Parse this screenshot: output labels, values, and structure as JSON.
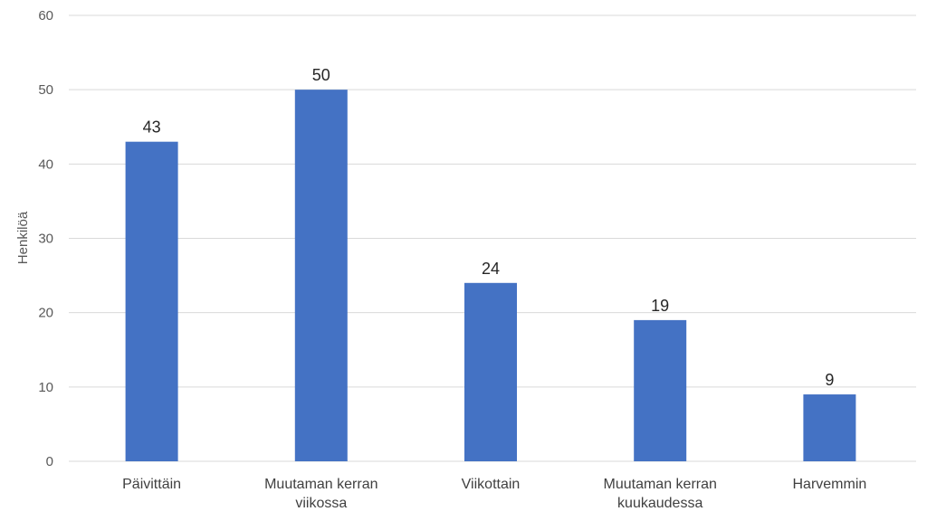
{
  "chart_data": {
    "type": "bar",
    "categories": [
      "Päivittäin",
      "Muutaman kerran viikossa",
      "Viikottain",
      "Muutaman kerran kuukaudessa",
      "Harvemmin"
    ],
    "category_label_lines": [
      [
        "Päivittäin"
      ],
      [
        "Muutaman kerran",
        "viikossa"
      ],
      [
        "Viikottain"
      ],
      [
        "Muutaman kerran",
        "kuukaudessa"
      ],
      [
        "Harvemmin"
      ]
    ],
    "values": [
      43,
      50,
      24,
      19,
      9
    ],
    "data_labels": [
      "43",
      "50",
      "24",
      "19",
      "9"
    ],
    "title": "",
    "xlabel": "",
    "ylabel": "Henkilöä",
    "ylim": [
      0,
      60
    ],
    "yticks": [
      0,
      10,
      20,
      30,
      40,
      50,
      60
    ],
    "grid": true,
    "legend": "none",
    "bar_color": "#4472c4"
  }
}
